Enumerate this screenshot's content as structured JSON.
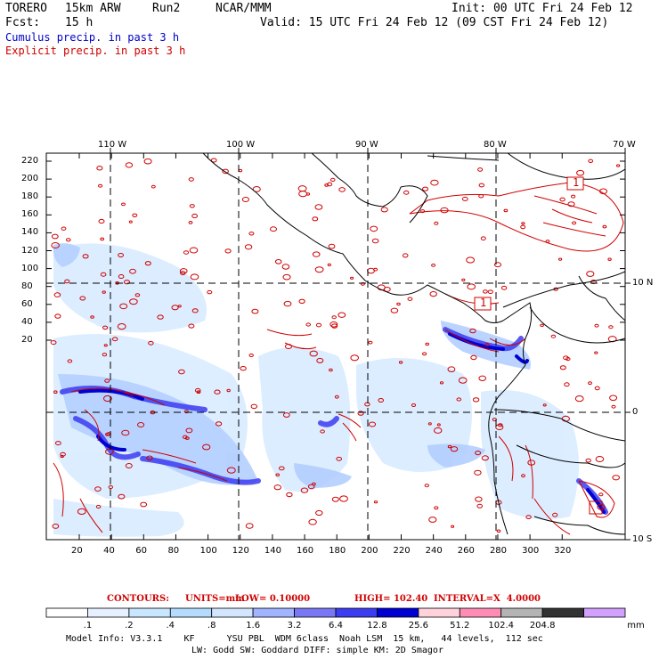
{
  "header": {
    "model": "TORERO",
    "resolution": "15km ARW",
    "run": "Run2",
    "org": "NCAR/MMM",
    "init": "Init: 00 UTC Fri 24 Feb 12",
    "fcst_label": "Fcst:",
    "fcst_value": "15 h",
    "valid": "Valid: 15 UTC Fri 24 Feb 12 (09 CST Fri 24 Feb 12)",
    "field1": "Cumulus precip. in past 3 h",
    "field2": "Explicit precip. in past 3 h",
    "field1_color": "#0000c8",
    "field2_color": "#d00000"
  },
  "map": {
    "top_lon_labels": [
      "110 W",
      "100 W",
      "90 W",
      "80 W",
      "70 W"
    ],
    "right_lat_labels": [
      "10 N",
      "0",
      "10 S"
    ],
    "left_y_ticks": [
      "220",
      "200",
      "180",
      "160",
      "140",
      "120",
      "100",
      "80",
      "60",
      "40",
      "20"
    ],
    "bottom_x_ticks": [
      "20",
      "40",
      "60",
      "80",
      "100",
      "120",
      "140",
      "160",
      "180",
      "200",
      "220",
      "240",
      "260",
      "280",
      "300",
      "320"
    ],
    "highs": [
      "1",
      "1"
    ]
  },
  "contour_info": {
    "contours": "CONTOURS:",
    "units": "UNITS=mm",
    "low": "LOW= 0.10000",
    "high": "HIGH= 102.40",
    "interval": "INTERVAL=X  4.0000"
  },
  "colorbar": {
    "labels": [
      ".1",
      ".2",
      ".4",
      ".8",
      "1.6",
      "3.2",
      "6.4",
      "12.8",
      "25.6",
      "51.2",
      "102.4",
      "204.8"
    ],
    "unit": "mm",
    "colors": [
      "#ffffff",
      "#e6f0ff",
      "#c8e6ff",
      "#b4dcff",
      "#d2e6ff",
      "#a0b4ff",
      "#7878f5",
      "#3c3cf0",
      "#0000d2",
      "#ffd2dc",
      "#ff8cb4",
      "#b4b4b4",
      "#323232",
      "#d2a0ff"
    ]
  },
  "footer": {
    "line1": "Model Info: V3.3.1    KF      YSU PBL  WDM 6class  Noah LSM  15 km,   44 levels,  112 sec",
    "line2": "LW: Godd SW: Goddard DIFF: simple KM: 2D Smagor"
  }
}
